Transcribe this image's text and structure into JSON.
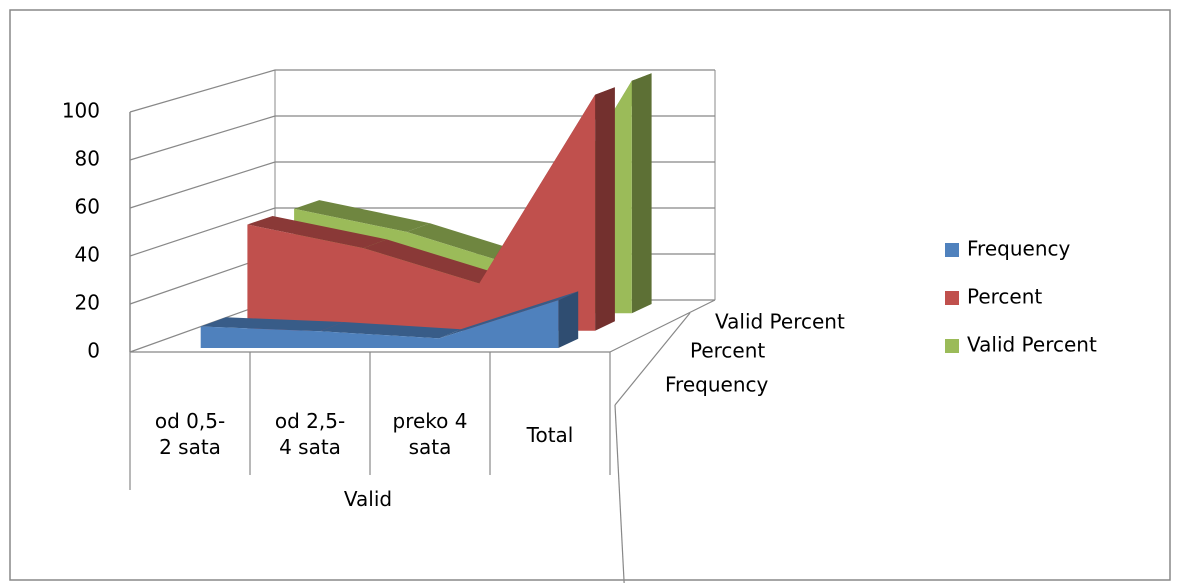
{
  "chart_data": {
    "type": "area3d",
    "categories": [
      "od  0,5-2 sata",
      "od 2,5-4 sata",
      "preko 4 sata",
      "Total"
    ],
    "group_label": "Valid",
    "series": [
      {
        "name": "Frequency",
        "color": "#4f81bd",
        "values": [
          9,
          7,
          4,
          20
        ]
      },
      {
        "name": "Percent",
        "color": "#c0504d",
        "values": [
          45,
          35,
          20,
          100
        ]
      },
      {
        "name": "Valid Percent",
        "color": "#9bbb59",
        "values": [
          45,
          35,
          20,
          100
        ]
      }
    ],
    "ylim": [
      0,
      100
    ],
    "yticks": [
      0,
      20,
      40,
      60,
      80,
      100
    ],
    "grid": true
  }
}
